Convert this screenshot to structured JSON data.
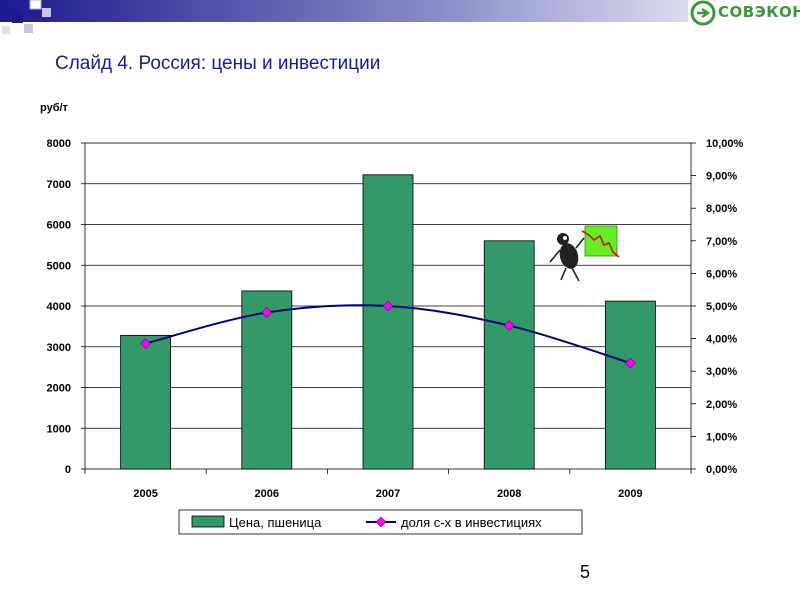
{
  "slide": {
    "title": "Слайд 4. Россия: цены и инвестиции",
    "page_number": "5"
  },
  "logo": {
    "text": "СОВЭКОН",
    "color": "#3a9a3a"
  },
  "colors": {
    "bar_fill": "#339966",
    "line": "#000080",
    "marker": "#ff00ff",
    "title": "#1a1a99",
    "band": "#1a1a8c"
  },
  "chart_data": {
    "type": "bar",
    "categories": [
      "2005",
      "2006",
      "2007",
      "2008",
      "2009"
    ],
    "ylabel": "руб/т",
    "ylim": [
      0,
      8000
    ],
    "y_ticks": [
      "0",
      "1000",
      "2000",
      "3000",
      "4000",
      "5000",
      "6000",
      "7000",
      "8000"
    ],
    "y2lim": [
      0,
      10
    ],
    "y2_ticks": [
      "0,00%",
      "1,00%",
      "2,00%",
      "3,00%",
      "4,00%",
      "5,00%",
      "6,00%",
      "7,00%",
      "8,00%",
      "9,00%",
      "10,00%"
    ],
    "grid": true,
    "legend_position": "bottom",
    "series": [
      {
        "name": "Цена, пшеница",
        "kind": "bar",
        "axis": "left",
        "values": [
          3280,
          4370,
          7220,
          5600,
          4120
        ]
      },
      {
        "name": "доля с-х в инвестициях",
        "kind": "line",
        "axis": "right",
        "values": [
          3.85,
          4.8,
          5.0,
          4.4,
          3.25
        ]
      }
    ]
  }
}
